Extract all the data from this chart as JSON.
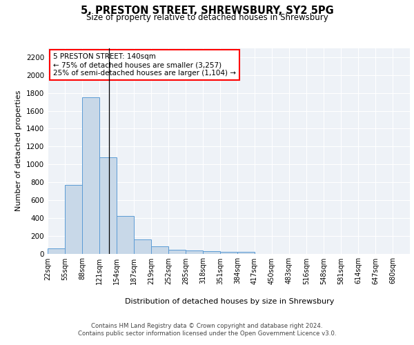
{
  "title": "5, PRESTON STREET, SHREWSBURY, SY2 5PG",
  "subtitle": "Size of property relative to detached houses in Shrewsbury",
  "xlabel": "Distribution of detached houses by size in Shrewsbury",
  "ylabel": "Number of detached properties",
  "bin_labels": [
    "22sqm",
    "55sqm",
    "88sqm",
    "121sqm",
    "154sqm",
    "187sqm",
    "219sqm",
    "252sqm",
    "285sqm",
    "318sqm",
    "351sqm",
    "384sqm",
    "417sqm",
    "450sqm",
    "483sqm",
    "516sqm",
    "548sqm",
    "581sqm",
    "614sqm",
    "647sqm",
    "680sqm"
  ],
  "bar_values": [
    55,
    770,
    1750,
    1075,
    420,
    155,
    85,
    45,
    35,
    28,
    18,
    18,
    0,
    0,
    0,
    0,
    0,
    0,
    0,
    0,
    0
  ],
  "bar_color": "#c8d8e8",
  "bar_edge_color": "#5b9bd5",
  "annotation_text": "5 PRESTON STREET: 140sqm\n← 75% of detached houses are smaller (3,257)\n25% of semi-detached houses are larger (1,104) →",
  "annotation_box_color": "white",
  "annotation_box_edge_color": "red",
  "ylim": [
    0,
    2300
  ],
  "yticks": [
    0,
    200,
    400,
    600,
    800,
    1000,
    1200,
    1400,
    1600,
    1800,
    2000,
    2200
  ],
  "background_color": "#eef2f7",
  "grid_color": "white",
  "footer_text": "Contains HM Land Registry data © Crown copyright and database right 2024.\nContains public sector information licensed under the Open Government Licence v3.0."
}
